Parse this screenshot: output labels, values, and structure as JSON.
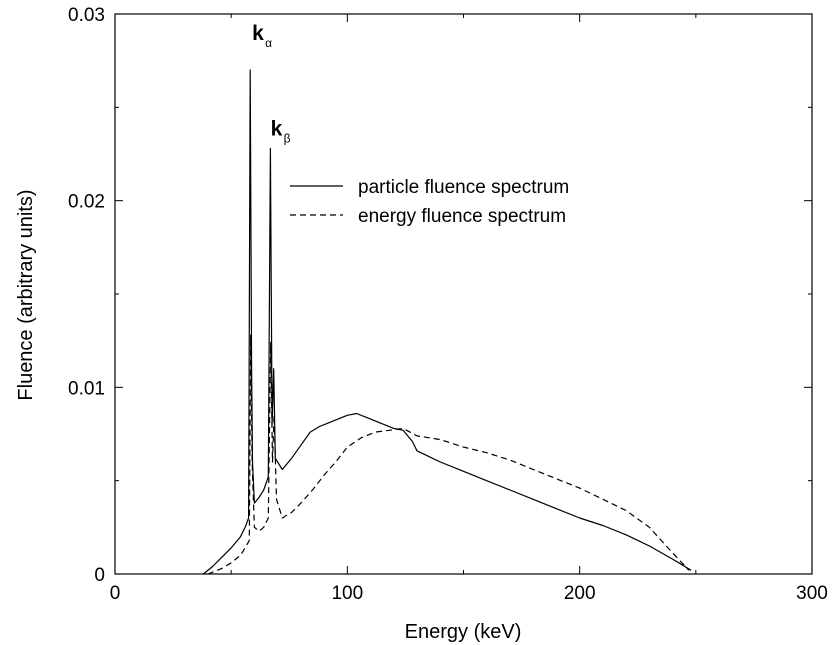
{
  "chart_data": {
    "type": "line",
    "title": "",
    "xlabel": "Energy (keV)",
    "ylabel": "Fluence (arbitrary units)",
    "xlim": [
      0,
      300
    ],
    "ylim": [
      0,
      0.03
    ],
    "xticks": [
      0,
      100,
      200,
      300
    ],
    "xtick_labels": [
      "0",
      "100",
      "200",
      "300"
    ],
    "yticks": [
      0,
      0.01,
      0.02,
      0.03
    ],
    "ytick_labels": [
      "0",
      "0.01",
      "0.02",
      "0.03"
    ],
    "grid": false,
    "legend_position": "upper-middle",
    "annotations": [
      {
        "text": "k",
        "sub": "α",
        "x": 59,
        "y": 0.0286
      },
      {
        "text": "k",
        "sub": "β",
        "x": 67,
        "y": 0.0235
      }
    ],
    "series": [
      {
        "name": "particle fluence spectrum",
        "style": "solid",
        "points": [
          [
            38,
            0
          ],
          [
            42,
            0.0004
          ],
          [
            46,
            0.0009
          ],
          [
            50,
            0.0014
          ],
          [
            54,
            0.002
          ],
          [
            56,
            0.0025
          ],
          [
            57.5,
            0.003
          ],
          [
            58.2,
            0.027
          ],
          [
            58.8,
            0.011
          ],
          [
            59.2,
            0.006
          ],
          [
            60,
            0.0038
          ],
          [
            62,
            0.0041
          ],
          [
            64,
            0.0045
          ],
          [
            66,
            0.0052
          ],
          [
            66.9,
            0.0228
          ],
          [
            67.6,
            0.008
          ],
          [
            68.3,
            0.011
          ],
          [
            69,
            0.0062
          ],
          [
            72,
            0.0056
          ],
          [
            76,
            0.0062
          ],
          [
            80,
            0.0069
          ],
          [
            84,
            0.0076
          ],
          [
            88,
            0.0079
          ],
          [
            92,
            0.0081
          ],
          [
            96,
            0.0083
          ],
          [
            100,
            0.0085
          ],
          [
            104,
            0.0086
          ],
          [
            108,
            0.0084
          ],
          [
            112,
            0.0082
          ],
          [
            116,
            0.008
          ],
          [
            120,
            0.0078
          ],
          [
            124,
            0.0077
          ],
          [
            128,
            0.0071
          ],
          [
            130,
            0.0066
          ],
          [
            135,
            0.0063
          ],
          [
            140,
            0.006
          ],
          [
            150,
            0.0055
          ],
          [
            160,
            0.005
          ],
          [
            170,
            0.0045
          ],
          [
            180,
            0.004
          ],
          [
            190,
            0.0035
          ],
          [
            200,
            0.003
          ],
          [
            210,
            0.0026
          ],
          [
            220,
            0.0021
          ],
          [
            230,
            0.0015
          ],
          [
            240,
            0.0008
          ],
          [
            248,
            0.0002
          ]
        ]
      },
      {
        "name": "energy fluence spectrum",
        "style": "dashed",
        "points": [
          [
            40,
            0
          ],
          [
            46,
            0.0003
          ],
          [
            50,
            0.0006
          ],
          [
            54,
            0.001
          ],
          [
            56,
            0.0014
          ],
          [
            57.8,
            0.0018
          ],
          [
            58.4,
            0.0128
          ],
          [
            59,
            0.006
          ],
          [
            60,
            0.0025
          ],
          [
            62,
            0.0023
          ],
          [
            64,
            0.0025
          ],
          [
            66,
            0.003
          ],
          [
            67,
            0.0124
          ],
          [
            67.8,
            0.006
          ],
          [
            68.5,
            0.0085
          ],
          [
            69.5,
            0.004
          ],
          [
            72,
            0.003
          ],
          [
            76,
            0.0033
          ],
          [
            80,
            0.0038
          ],
          [
            85,
            0.0045
          ],
          [
            90,
            0.0053
          ],
          [
            95,
            0.006
          ],
          [
            100,
            0.0068
          ],
          [
            106,
            0.0073
          ],
          [
            112,
            0.0076
          ],
          [
            118,
            0.0077
          ],
          [
            124,
            0.0078
          ],
          [
            130,
            0.0074
          ],
          [
            135,
            0.0073
          ],
          [
            140,
            0.0072
          ],
          [
            150,
            0.0068
          ],
          [
            160,
            0.0065
          ],
          [
            170,
            0.0061
          ],
          [
            180,
            0.0056
          ],
          [
            190,
            0.0051
          ],
          [
            200,
            0.0046
          ],
          [
            210,
            0.004
          ],
          [
            220,
            0.0034
          ],
          [
            230,
            0.0025
          ],
          [
            238,
            0.0014
          ],
          [
            244,
            0.0006
          ],
          [
            247,
            0.0002
          ]
        ]
      }
    ]
  }
}
